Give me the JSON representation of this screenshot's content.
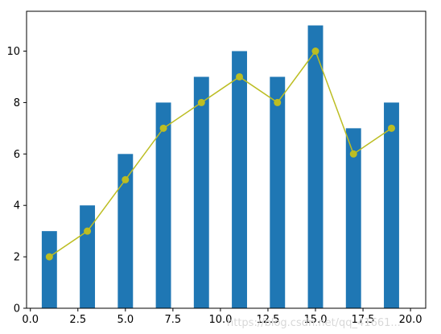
{
  "chart_data": {
    "type": "bar",
    "title": "",
    "xlabel": "",
    "ylabel": "",
    "xlim": [
      -0.2,
      20.8
    ],
    "ylim": [
      0,
      11.55
    ],
    "grid": false,
    "x_ticks": [
      0.0,
      2.5,
      5.0,
      7.5,
      10.0,
      12.5,
      15.0,
      17.5,
      20.0
    ],
    "x_tick_labels": [
      "0.0",
      "2.5",
      "5.0",
      "7.5",
      "10.0",
      "12.5",
      "15.0",
      "17.5",
      "20.0"
    ],
    "y_ticks": [
      0,
      2,
      4,
      6,
      8,
      10
    ],
    "y_tick_labels": [
      "0",
      "2",
      "4",
      "6",
      "8",
      "10"
    ],
    "bar_width": 0.8,
    "series": [
      {
        "type": "bar",
        "color": "#1f77b4",
        "x": [
          1,
          3,
          5,
          7,
          9,
          11,
          13,
          15,
          17,
          19
        ],
        "values": [
          3,
          4,
          6,
          8,
          9,
          10,
          9,
          11,
          7,
          8
        ]
      },
      {
        "type": "line",
        "color": "#bcbd22",
        "marker": "circle",
        "x": [
          1,
          3,
          5,
          7,
          9,
          11,
          13,
          15,
          17,
          19
        ],
        "values": [
          2,
          3,
          5,
          7,
          8,
          9,
          8,
          10,
          6,
          7
        ]
      }
    ]
  },
  "watermark": "https://blog.csdn.net/qq_41661..."
}
